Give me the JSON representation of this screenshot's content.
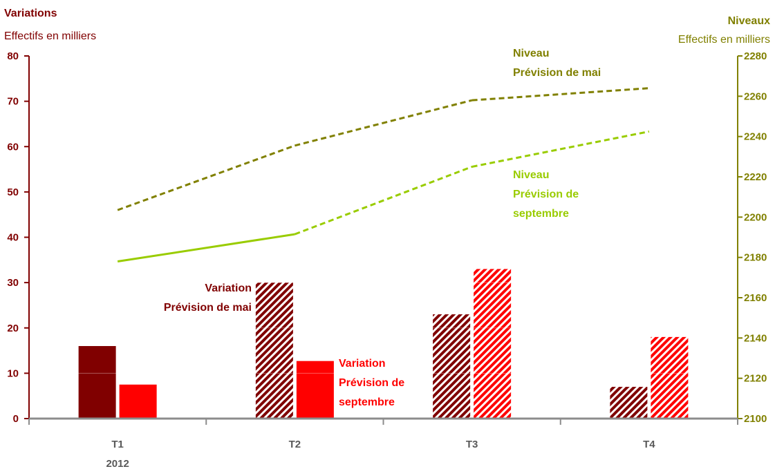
{
  "chart_data": {
    "type": "bar",
    "left_axis": {
      "title": "Variations",
      "subtitle": "Effectifs en milliers",
      "ylim": [
        0,
        80
      ],
      "ticks": [
        "0",
        "10",
        "20",
        "30",
        "40",
        "50",
        "60",
        "70",
        "80"
      ],
      "color": "#800000"
    },
    "right_axis": {
      "title": "Niveaux",
      "subtitle": "Effectifs en milliers",
      "ylim": [
        2100,
        2280
      ],
      "ticks": [
        "2100",
        "2120",
        "2140",
        "2160",
        "2180",
        "2200",
        "2220",
        "2240",
        "2260",
        "2280"
      ],
      "color": "#808000"
    },
    "categories": [
      "T1",
      "T2",
      "T3",
      "T4"
    ],
    "year_label": "2012",
    "bar_series": [
      {
        "key": "mai",
        "values": [
          16,
          30,
          23,
          7
        ],
        "color": "#800000",
        "hatched_from_index": 1
      },
      {
        "key": "sept",
        "values": [
          7.5,
          12.7,
          33,
          18
        ],
        "color": "#ff0000",
        "hatched_from_index": 2
      }
    ],
    "line_series": [
      {
        "key": "niveau_mai",
        "values": [
          2203.5,
          2235.5,
          2258,
          2264
        ],
        "color": "#808000",
        "dashed_from_index": 0,
        "axis": "right"
      },
      {
        "key": "niveau_sept",
        "values": [
          2178,
          2191.5,
          2225,
          2242.5
        ],
        "color": "#99cc00",
        "dashed_from_index": 1,
        "axis": "right"
      }
    ],
    "annotations": [
      {
        "key": "line_mai",
        "lines": [
          "Niveau",
          "Prévision de mai"
        ],
        "color": "#808000"
      },
      {
        "key": "line_sept",
        "lines": [
          "Niveau",
          "Prévision de",
          "septembre"
        ],
        "color": "#99cc00"
      },
      {
        "key": "bar_mai",
        "lines": [
          "Variation",
          "Prévision de mai"
        ],
        "color": "#800000"
      },
      {
        "key": "bar_sept",
        "lines": [
          "Variation",
          "Prévision de",
          "septembre"
        ],
        "color": "#ff0000"
      }
    ]
  }
}
